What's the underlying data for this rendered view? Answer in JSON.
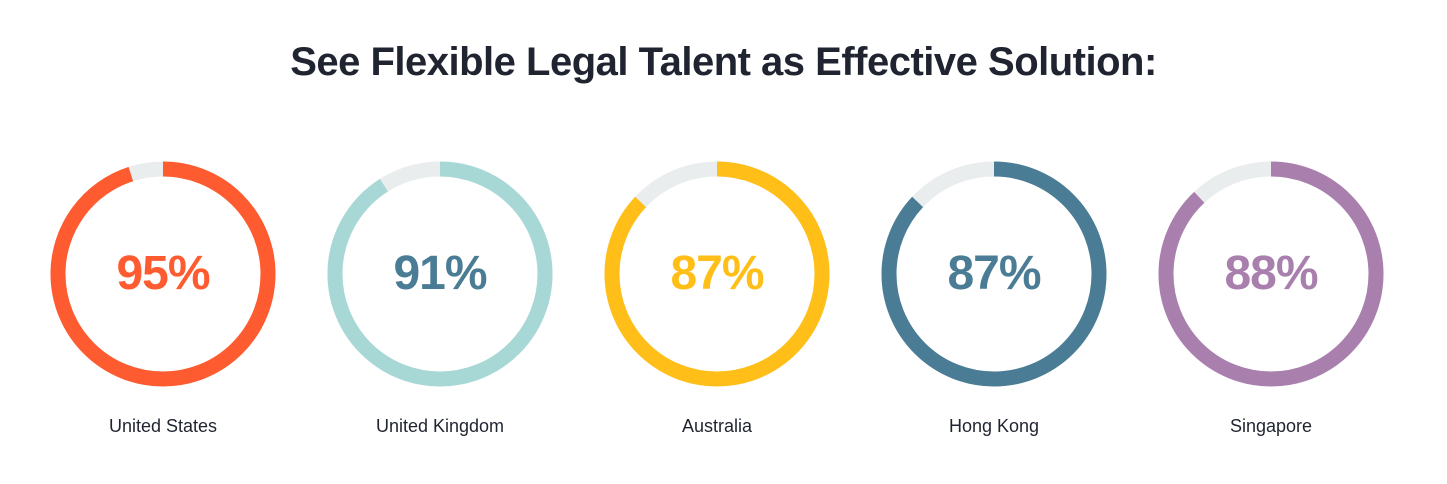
{
  "title": "See Flexible Legal Talent as Effective Solution:",
  "track_color": "#eaedee",
  "chart_data": {
    "type": "donut",
    "title": "See Flexible Legal Talent as Effective Solution:",
    "unit": "%",
    "items": [
      {
        "label": "United States",
        "value": 95,
        "value_label": "95%",
        "color": "#ff5b30",
        "text_color": "#ff5b30"
      },
      {
        "label": "United Kingdom",
        "value": 91,
        "value_label": "91%",
        "color": "#a8d8d6",
        "text_color": "#4a7d95"
      },
      {
        "label": "Australia",
        "value": 87,
        "value_label": "87%",
        "color": "#ffbf18",
        "text_color": "#ffbf18"
      },
      {
        "label": "Hong Kong",
        "value": 87,
        "value_label": "87%",
        "color": "#4a7d95",
        "text_color": "#4a7d95"
      },
      {
        "label": "Singapore",
        "value": 88,
        "value_label": "88%",
        "color": "#a97fae",
        "text_color": "#a97fae"
      }
    ]
  }
}
